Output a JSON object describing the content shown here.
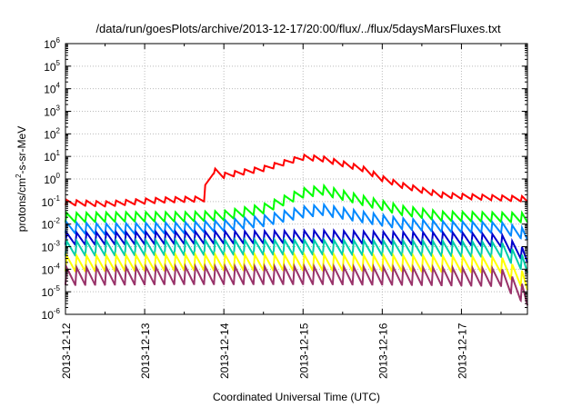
{
  "chart_data": {
    "type": "line",
    "title": "/data/run/goesPlots/archive/2013-12-17/20:00/flux/../flux/5daysMarsFluxes.txt",
    "xlabel": "Coordinated Universal Time (UTC)",
    "ylabel": "protons/cm²-s-sr-MeV",
    "ylabel_parts": {
      "a": "protons/cm",
      "sup": "2",
      "b": "-s-sr-MeV"
    },
    "y_scale": "log",
    "ylim": [
      1e-06,
      1000000.0
    ],
    "y_ticks": [
      {
        "value": 1e-06,
        "base": "10",
        "exp": "-6"
      },
      {
        "value": 1e-05,
        "base": "10",
        "exp": "-5"
      },
      {
        "value": 0.0001,
        "base": "10",
        "exp": "-4"
      },
      {
        "value": 0.001,
        "base": "10",
        "exp": "-3"
      },
      {
        "value": 0.01,
        "base": "10",
        "exp": "-2"
      },
      {
        "value": 0.1,
        "base": "10",
        "exp": "-1"
      },
      {
        "value": 1,
        "base": "10",
        "exp": "0"
      },
      {
        "value": 10.0,
        "base": "10",
        "exp": "1"
      },
      {
        "value": 100.0,
        "base": "10",
        "exp": "2"
      },
      {
        "value": 1000.0,
        "base": "10",
        "exp": "3"
      },
      {
        "value": 10000.0,
        "base": "10",
        "exp": "4"
      },
      {
        "value": 100000.0,
        "base": "10",
        "exp": "5"
      },
      {
        "value": 1000000.0,
        "base": "10",
        "exp": "6"
      }
    ],
    "x_ticks": [
      "2013-12-12",
      "2013-12-13",
      "2013-12-14",
      "2013-12-15",
      "2013-12-16",
      "2013-12-17"
    ],
    "xlim": [
      "2013-12-12T00:00",
      "2013-12-17T20:00"
    ],
    "grid": true,
    "sawtooth_period_hours": 3,
    "series": [
      {
        "color": "#ff0000",
        "baseline": [
          [
            "2013-12-12T00:00",
            0.07
          ],
          [
            "2013-12-12T12:00",
            0.06
          ],
          [
            "2013-12-13T00:00",
            0.08
          ],
          [
            "2013-12-13T06:00",
            0.09
          ],
          [
            "2013-12-13T18:00",
            0.1
          ],
          [
            "2013-12-13T19:00",
            2.5
          ],
          [
            "2013-12-14T00:00",
            1.1
          ],
          [
            "2013-12-14T12:00",
            2.2
          ],
          [
            "2013-12-15T00:00",
            7
          ],
          [
            "2013-12-15T06:00",
            6
          ],
          [
            "2013-12-15T18:00",
            2.2
          ],
          [
            "2013-12-16T00:00",
            0.8
          ],
          [
            "2013-12-16T06:00",
            0.4
          ],
          [
            "2013-12-16T18:00",
            0.15
          ],
          [
            "2013-12-17T00:00",
            0.13
          ],
          [
            "2013-12-17T12:00",
            0.11
          ],
          [
            "2013-12-17T20:00",
            0.1
          ]
        ],
        "amplitude": 1.7
      },
      {
        "color": "#00ff00",
        "baseline": [
          [
            "2013-12-12T00:00",
            0.012
          ],
          [
            "2013-12-12T18:00",
            0.013
          ],
          [
            "2013-12-13T12:00",
            0.013
          ],
          [
            "2013-12-14T00:00",
            0.015
          ],
          [
            "2013-12-14T12:00",
            0.03
          ],
          [
            "2013-12-15T00:00",
            0.15
          ],
          [
            "2013-12-15T06:00",
            0.2
          ],
          [
            "2013-12-15T18:00",
            0.07
          ],
          [
            "2013-12-16T06:00",
            0.025
          ],
          [
            "2013-12-16T18:00",
            0.014
          ],
          [
            "2013-12-17T20:00",
            0.012
          ]
        ],
        "amplitude": 2.6
      },
      {
        "color": "#0088ff",
        "baseline": [
          [
            "2013-12-12T00:00",
            0.004
          ],
          [
            "2013-12-12T12:00",
            0.0035
          ],
          [
            "2013-12-13T12:00",
            0.004
          ],
          [
            "2013-12-14T00:00",
            0.005
          ],
          [
            "2013-12-14T12:00",
            0.008
          ],
          [
            "2013-12-15T00:00",
            0.02
          ],
          [
            "2013-12-15T06:00",
            0.025
          ],
          [
            "2013-12-15T18:00",
            0.012
          ],
          [
            "2013-12-16T06:00",
            0.006
          ],
          [
            "2013-12-16T18:00",
            0.0045
          ],
          [
            "2013-12-17T12:00",
            0.004
          ],
          [
            "2013-12-17T20:00",
            0.002
          ]
        ],
        "amplitude": 3
      },
      {
        "color": "#0000cc",
        "baseline": [
          [
            "2013-12-12T00:00",
            0.0012
          ],
          [
            "2013-12-13T00:00",
            0.0013
          ],
          [
            "2013-12-14T12:00",
            0.0014
          ],
          [
            "2013-12-15T06:00",
            0.0015
          ],
          [
            "2013-12-16T00:00",
            0.0013
          ],
          [
            "2013-12-17T00:00",
            0.0012
          ],
          [
            "2013-12-17T12:00",
            0.001
          ],
          [
            "2013-12-17T20:00",
            0.0002
          ]
        ],
        "amplitude": 3.5
      },
      {
        "color": "#00ccaa",
        "baseline": [
          [
            "2013-12-12T00:00",
            0.0004
          ],
          [
            "2013-12-13T00:00",
            0.00042
          ],
          [
            "2013-12-15T00:00",
            0.00045
          ],
          [
            "2013-12-16T12:00",
            0.0004
          ],
          [
            "2013-12-17T12:00",
            0.00035
          ],
          [
            "2013-12-17T20:00",
            7e-05
          ]
        ],
        "amplitude": 4.5
      },
      {
        "color": "#ffff00",
        "baseline": [
          [
            "2013-12-12T00:00",
            8e-05
          ],
          [
            "2013-12-13T12:00",
            9e-05
          ],
          [
            "2013-12-15T00:00",
            9e-05
          ],
          [
            "2013-12-16T12:00",
            8e-05
          ],
          [
            "2013-12-17T12:00",
            7e-05
          ],
          [
            "2013-12-17T20:00",
            1.2e-05
          ]
        ],
        "amplitude": 5
      },
      {
        "color": "#99336a",
        "baseline": [
          [
            "2013-12-12T00:00",
            2e-05
          ],
          [
            "2013-12-13T12:00",
            2.2e-05
          ],
          [
            "2013-12-15T00:00",
            2.2e-05
          ],
          [
            "2013-12-16T12:00",
            2e-05
          ],
          [
            "2013-12-17T12:00",
            1.8e-05
          ],
          [
            "2013-12-17T20:00",
            2.5e-06
          ]
        ],
        "amplitude": 6
      }
    ]
  }
}
